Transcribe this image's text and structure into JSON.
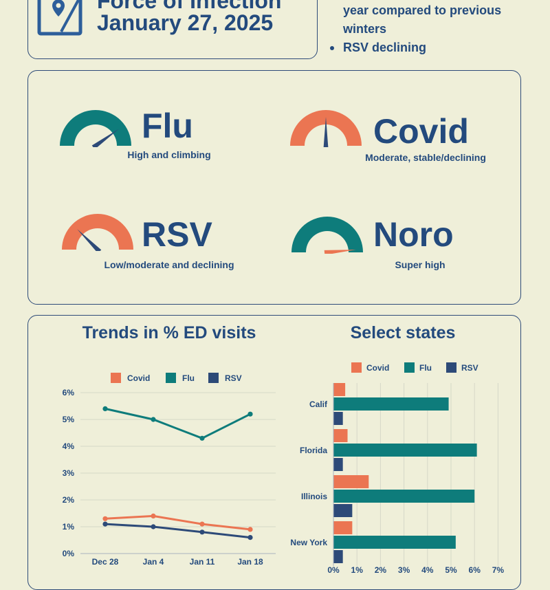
{
  "header": {
    "title_line1": "Force of Infection",
    "title_line2": "January 27, 2025",
    "icon": "map-pin-icon"
  },
  "highlights": {
    "items": [
      {
        "text": "year compared to previous",
        "bullet": false
      },
      {
        "text": "winters",
        "bullet": false
      },
      {
        "text": "RSV declining",
        "bullet": true
      }
    ]
  },
  "gauges": [
    {
      "name": "Flu",
      "description": "High and climbing",
      "level": 0.8,
      "arc_color": "#0e7c7b",
      "needle_color": "#2d4a78"
    },
    {
      "name": "Covid",
      "description": "Moderate, stable/declining",
      "level": 0.5,
      "arc_color": "#eb7552",
      "needle_color": "#2d4a78"
    },
    {
      "name": "RSV",
      "description": "Low/moderate and declining",
      "level": 0.25,
      "arc_color": "#eb7552",
      "needle_color": "#2d4a78"
    },
    {
      "name": "Noro",
      "description": "Super high",
      "level": 0.97,
      "arc_color": "#0e7c7b",
      "needle_color": "#eb7552"
    }
  ],
  "colors": {
    "covid": "#eb7552",
    "flu": "#0e7c7b",
    "rsv": "#2d4a78"
  },
  "chart_data": [
    {
      "type": "line",
      "title": "Trends in % ED visits",
      "categories": [
        "Dec 28",
        "Jan 4",
        "Jan 11",
        "Jan 18"
      ],
      "series": [
        {
          "name": "Covid",
          "values": [
            1.3,
            1.4,
            1.1,
            0.9
          ]
        },
        {
          "name": "Flu",
          "values": [
            5.4,
            5.0,
            4.3,
            5.2
          ]
        },
        {
          "name": "RSV",
          "values": [
            1.1,
            1.0,
            0.8,
            0.6
          ]
        }
      ],
      "y_ticks": [
        "0%",
        "1%",
        "2%",
        "3%",
        "4%",
        "5%",
        "6%"
      ],
      "ylim": [
        0,
        6
      ],
      "legend": "top"
    },
    {
      "type": "bar",
      "orientation": "horizontal",
      "title": "Select states",
      "categories": [
        "Calif",
        "Florida",
        "Illinois",
        "New York"
      ],
      "series": [
        {
          "name": "Covid",
          "values": [
            0.5,
            0.6,
            1.5,
            0.8
          ]
        },
        {
          "name": "Flu",
          "values": [
            4.9,
            6.1,
            6.0,
            5.2
          ]
        },
        {
          "name": "RSV",
          "values": [
            0.4,
            0.4,
            0.8,
            0.4
          ]
        }
      ],
      "x_ticks": [
        "0%",
        "1%",
        "2%",
        "3%",
        "4%",
        "5%",
        "6%",
        "7%"
      ],
      "xlim": [
        0,
        7
      ],
      "legend": "top"
    }
  ]
}
